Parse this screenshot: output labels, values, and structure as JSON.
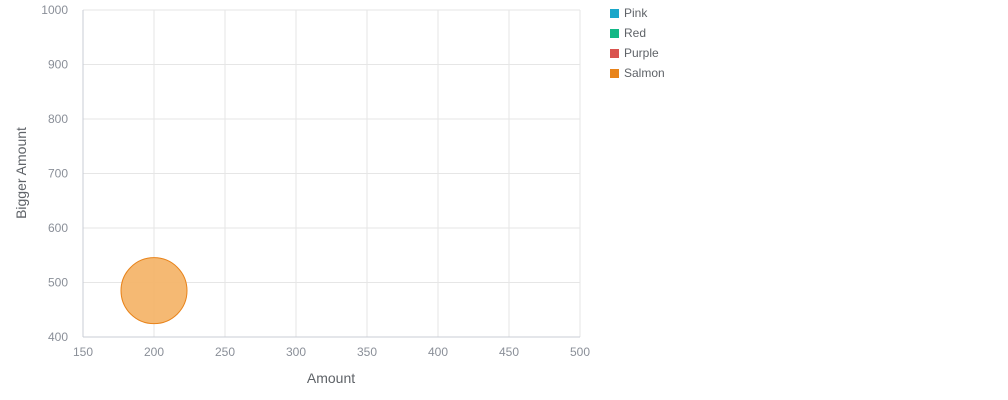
{
  "chart_data": {
    "type": "scatter",
    "subtype": "bubble",
    "xlabel": "Amount",
    "ylabel": "Bigger Amount",
    "xlim": [
      150,
      500
    ],
    "ylim": [
      400,
      1000
    ],
    "xticks": [
      "150",
      "200",
      "250",
      "300",
      "350",
      "400",
      "450",
      "500"
    ],
    "yticks": [
      "400",
      "500",
      "600",
      "700",
      "800",
      "900",
      "1000"
    ],
    "grid": true,
    "legend_position": "right",
    "series": [
      {
        "name": "Pink",
        "color": "#1aa7c9",
        "points": []
      },
      {
        "name": "Red",
        "color": "#12b886",
        "points": []
      },
      {
        "name": "Purple",
        "color": "#d9534f",
        "points": []
      },
      {
        "name": "Salmon",
        "color": "#e8831a",
        "fill": "#f4b56c",
        "points": [
          {
            "x": 200,
            "y": 485
          }
        ]
      }
    ]
  }
}
